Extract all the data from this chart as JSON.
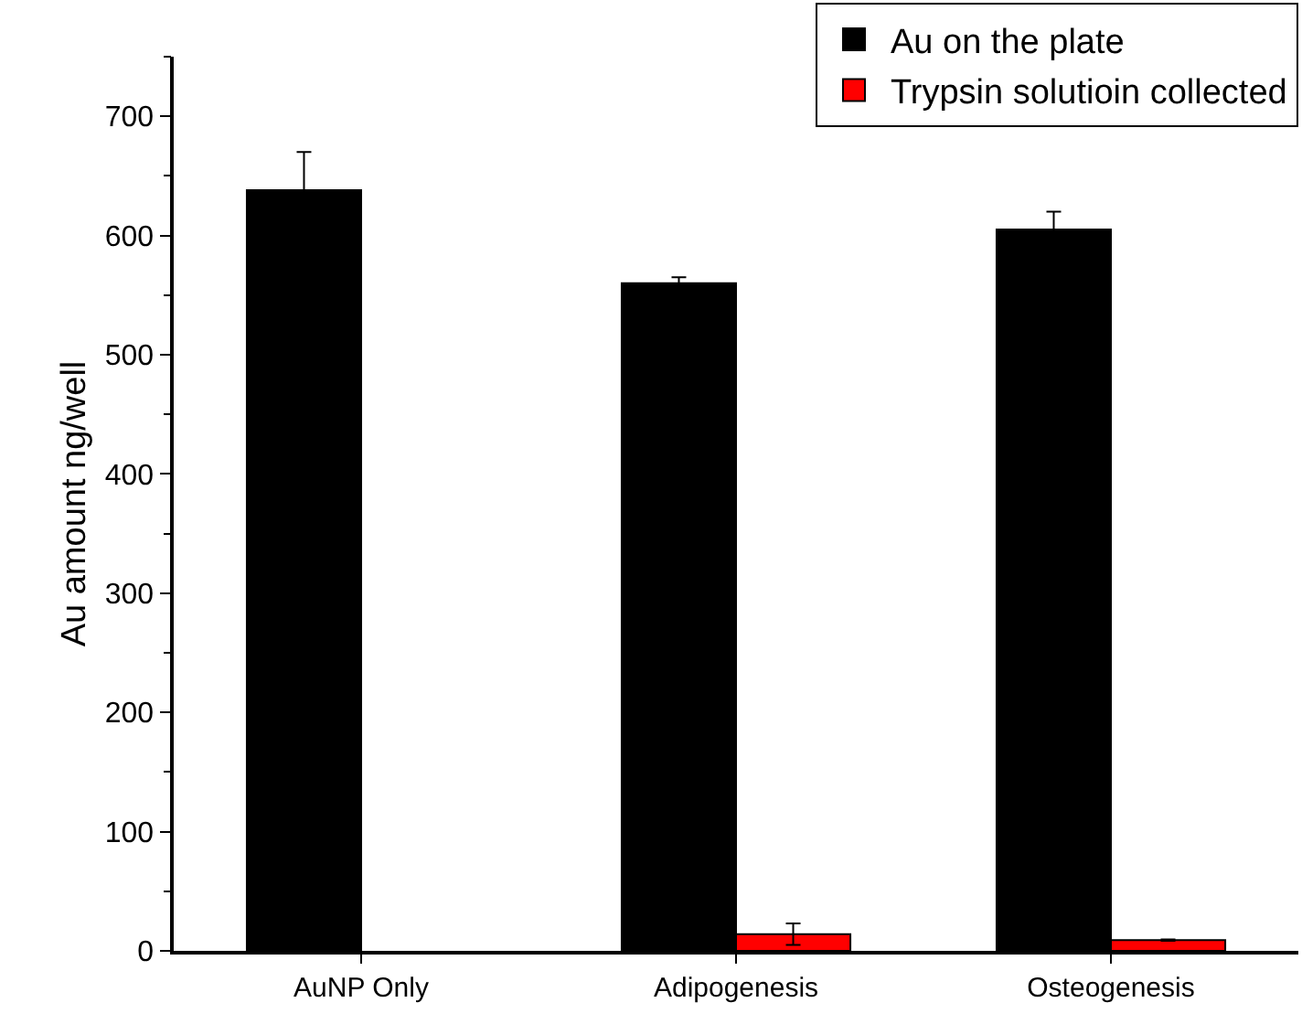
{
  "chart_data": {
    "type": "bar",
    "ylabel": "Au amount ng/well",
    "categories": [
      "AuNP Only",
      "Adipogenesis",
      "Osteogenesis"
    ],
    "series": [
      {
        "name": "Au on the plate",
        "color": "#000000",
        "values": [
          638,
          560,
          605
        ],
        "errors": [
          32,
          5,
          15
        ]
      },
      {
        "name": "Trypsin solutioin collected",
        "color": "#ff0000",
        "values": [
          null,
          14,
          9
        ],
        "errors": [
          null,
          9,
          0.5
        ]
      }
    ],
    "ylim": [
      0,
      750
    ],
    "yticks": [
      0,
      100,
      200,
      300,
      400,
      500,
      600,
      700
    ],
    "grid": false,
    "legend": "top right"
  }
}
